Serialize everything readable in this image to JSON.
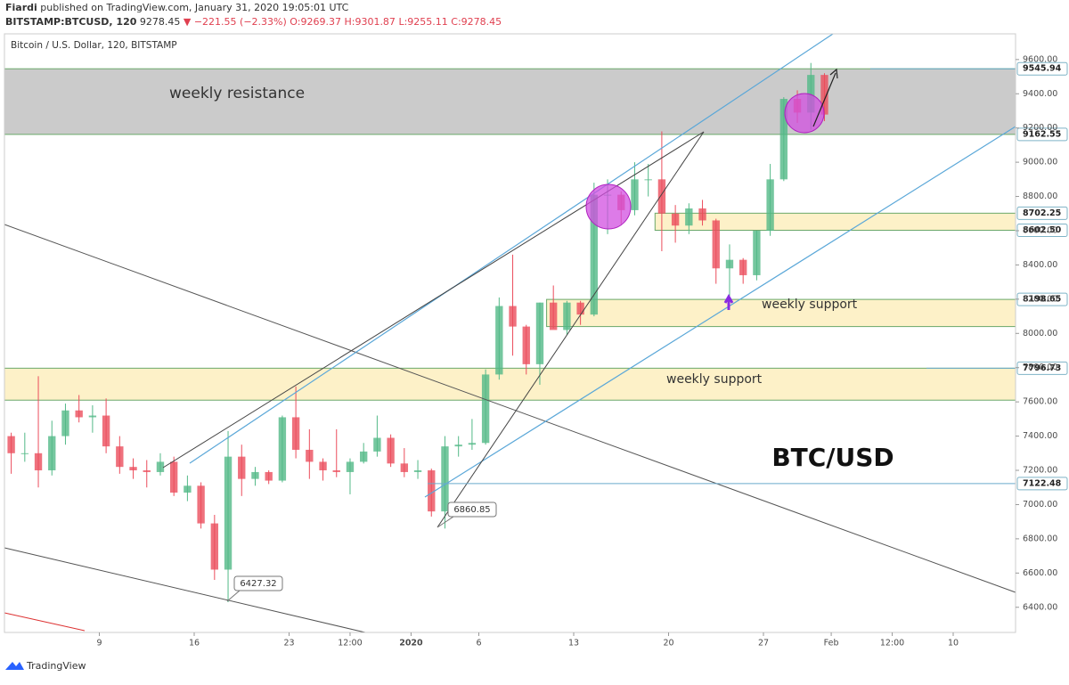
{
  "header": {
    "author": "Fiardi",
    "published": "published on TradingView.com, January 31, 2020 19:05:01 UTC",
    "symbol": "BITSTAMP:BTCUSD, 120",
    "last": "9278.45",
    "change": "−221.55 (−2.33%)",
    "ohlc": [
      "O:9269.37",
      "H:9301.87",
      "L:9255.11",
      "C:9278.45"
    ]
  },
  "footer": "TradingView",
  "chart_data": {
    "type": "candlestick",
    "title": "Bitcoin / U.S. Dollar, 120, BITSTAMP",
    "up_color": "#53b987",
    "down_color": "#eb4d5c",
    "x": [
      -30,
      -29,
      -28,
      -27,
      -26,
      -25,
      -24,
      -23,
      -22,
      -21,
      -20,
      -19,
      -18,
      -17,
      -16,
      -15,
      -14,
      -13,
      -12,
      -11,
      -10,
      -9,
      -8,
      -7,
      -6,
      -5,
      -4,
      -3,
      -2,
      -1,
      0,
      1,
      2,
      3,
      4,
      5,
      6,
      7,
      8,
      9,
      10,
      11,
      12,
      13,
      14,
      15,
      16,
      17,
      18,
      19,
      20,
      21,
      22,
      23,
      24,
      25,
      26,
      27,
      28,
      29,
      30
    ],
    "open": [
      7400,
      7300,
      7300,
      7200,
      7400,
      7550,
      7510,
      7520,
      7340,
      7220,
      7200,
      7190,
      7250,
      7070,
      7110,
      6890,
      6620,
      7280,
      7150,
      7190,
      7140,
      7510,
      7320,
      7250,
      7200,
      7190,
      7250,
      7310,
      7390,
      7240,
      7190,
      7200,
      6960,
      7340,
      7350,
      7360,
      7760,
      8160,
      8040,
      7820,
      8180,
      8020,
      8180,
      8110,
      8810,
      8810,
      8720,
      8900,
      8900,
      8700,
      8630,
      8730,
      8660,
      8380,
      8430,
      8340,
      8600,
      8900,
      9370,
      9290,
      9510
    ],
    "high": [
      7420,
      7420,
      7750,
      7490,
      7590,
      7640,
      7580,
      7620,
      7400,
      7270,
      7260,
      7300,
      7280,
      7170,
      7130,
      6940,
      7430,
      7350,
      7220,
      7200,
      7520,
      7690,
      7440,
      7270,
      7440,
      7270,
      7360,
      7520,
      7410,
      7330,
      7260,
      7210,
      7400,
      7400,
      7500,
      7790,
      8210,
      8460,
      8050,
      8180,
      8280,
      8190,
      8190,
      8880,
      8900,
      8830,
      9000,
      8990,
      9180,
      8750,
      8760,
      8780,
      8670,
      8520,
      8440,
      8600,
      8990,
      9380,
      9420,
      9580,
      9520
    ],
    "low": [
      7180,
      7250,
      7100,
      7170,
      7350,
      7480,
      7420,
      7300,
      7180,
      7150,
      7100,
      7170,
      7050,
      7020,
      6860,
      6560,
      6430,
      7050,
      7110,
      7120,
      7130,
      7270,
      7150,
      7140,
      7160,
      7060,
      7240,
      7280,
      7220,
      7160,
      7150,
      6930,
      6860,
      7280,
      7320,
      7350,
      7730,
      7870,
      7760,
      7700,
      8030,
      7990,
      8050,
      8100,
      8580,
      8640,
      8690,
      8800,
      8480,
      8530,
      8580,
      8630,
      8290,
      8220,
      8290,
      8310,
      8570,
      8890,
      9230,
      9190,
      9240
    ],
    "close": [
      7300,
      7300,
      7200,
      7400,
      7550,
      7510,
      7520,
      7340,
      7220,
      7200,
      7190,
      7250,
      7070,
      7110,
      6890,
      6620,
      7280,
      7150,
      7190,
      7140,
      7510,
      7320,
      7250,
      7200,
      7190,
      7250,
      7310,
      7390,
      7240,
      7190,
      7200,
      6960,
      7340,
      7350,
      7360,
      7760,
      8160,
      8040,
      7820,
      8180,
      8020,
      8180,
      8110,
      8810,
      8810,
      8720,
      8900,
      8900,
      8700,
      8630,
      8730,
      8660,
      8380,
      8430,
      8340,
      8600,
      8900,
      9370,
      9290,
      9510,
      9278.45
    ],
    "xlim": [
      -30,
      44.6
    ],
    "xticks": [
      {
        "value": -23,
        "label": "9"
      },
      {
        "value": -16,
        "label": "16"
      },
      {
        "value": -9,
        "label": "23"
      },
      {
        "value": -4.5,
        "label": "12:00"
      },
      {
        "value": 0,
        "label": "2020"
      },
      {
        "value": 5,
        "label": "6"
      },
      {
        "value": 12,
        "label": "13"
      },
      {
        "value": 19,
        "label": "20"
      },
      {
        "value": 26,
        "label": "27"
      },
      {
        "value": 31,
        "label": "Feb"
      },
      {
        "value": 35.5,
        "label": "12:00"
      },
      {
        "value": 40,
        "label": "10"
      }
    ],
    "ylim": [
      6253,
      9750
    ],
    "yticks": [
      {
        "value": 6400,
        "label": "6400.00"
      },
      {
        "value": 6600,
        "label": "6600.00"
      },
      {
        "value": 6800,
        "label": "6800.00"
      },
      {
        "value": 7000,
        "label": "7000.00"
      },
      {
        "value": 7200,
        "label": "7200.00"
      },
      {
        "value": 7400,
        "label": "7400.00"
      },
      {
        "value": 7600,
        "label": "7600.00"
      },
      {
        "value": 7800,
        "label": "7800.00"
      },
      {
        "value": 8000,
        "label": "8000.00"
      },
      {
        "value": 8200,
        "label": "8200.00"
      },
      {
        "value": 8400,
        "label": "8400.00"
      },
      {
        "value": 8600,
        "label": "8600.00"
      },
      {
        "value": 8800,
        "label": "8800.00"
      },
      {
        "value": 9000,
        "label": "9000.00"
      },
      {
        "value": 9200,
        "label": "9200.00"
      },
      {
        "value": 9400,
        "label": "9400.00"
      },
      {
        "value": 9600,
        "label": "9600.00"
      }
    ],
    "zones": [
      {
        "top": 9545.94,
        "bottom": 9162.55,
        "color": "#cbcbcb",
        "label": "weekly resistance"
      },
      {
        "top": 8702.25,
        "bottom": 8602.5,
        "from": 18,
        "color": "#fdf1c8"
      },
      {
        "top": 8198.65,
        "bottom": 8040,
        "from": 10,
        "color": "#fdf1c8",
        "label": "weekly support"
      },
      {
        "top": 7796.73,
        "bottom": 7610,
        "color": "#fdf1c8",
        "label": "weekly support"
      }
    ],
    "price_lines": [
      9545.94,
      9162.55,
      8702.25,
      {
        "value": 8602.5,
        "label": "8602.50"
      },
      8198.65,
      7796.73,
      7122.48
    ],
    "callouts": [
      6427.32,
      6860.85
    ],
    "watermark": "BTC/USD"
  }
}
